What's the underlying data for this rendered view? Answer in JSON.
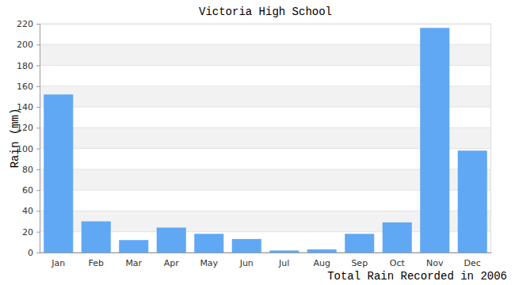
{
  "chart_data": {
    "type": "bar",
    "title": "Victoria High School",
    "y_label": "Rain (mm)",
    "x_label": "Total Rain Recorded in 2006",
    "categories": [
      "Jan",
      "Feb",
      "Mar",
      "Apr",
      "May",
      "Jun",
      "Jul",
      "Aug",
      "Sep",
      "Oct",
      "Nov",
      "Dec"
    ],
    "values": [
      152,
      30,
      12,
      24,
      18,
      13,
      2,
      3,
      18,
      29,
      216,
      98
    ],
    "color": "#60a8f4",
    "ylim": [
      0,
      220
    ],
    "yticks": [
      0,
      20,
      40,
      60,
      80,
      100,
      120,
      140,
      160,
      180,
      200,
      220
    ],
    "grid": true
  }
}
